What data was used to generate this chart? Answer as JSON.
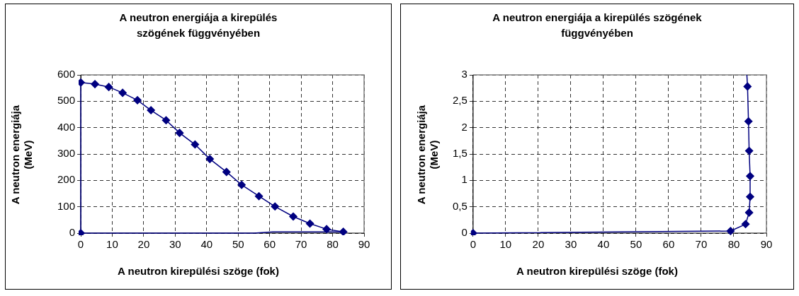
{
  "chart_data": [
    {
      "type": "scatter",
      "title": "A neutron energiája a kirepülés szögének függvényében",
      "xlabel": "A neutron kirepülési szöge (fok)",
      "ylabel": "A neutron energiája (MeV)",
      "xlim": [
        0,
        90
      ],
      "xticks": [
        0,
        10,
        20,
        30,
        40,
        50,
        60,
        70,
        80,
        90
      ],
      "ylim": [
        0,
        600
      ],
      "yticks": [
        0,
        100,
        200,
        300,
        400,
        500,
        600
      ],
      "grid": true,
      "legend": false,
      "line_style": "solid",
      "series": [
        {
          "type": "line",
          "color": "#000080",
          "marker": "diamond",
          "x": [
            0,
            0,
            4.5,
            8.9,
            13.3,
            18,
            22.3,
            27.1,
            31.4,
            36.3,
            41,
            46.3,
            51.1,
            56.6,
            61.7,
            67.5,
            72.8,
            78.1,
            83.4
          ],
          "values": [
            0,
            571,
            565,
            554,
            532,
            504,
            466,
            428,
            380,
            336,
            281,
            232,
            183,
            140,
            101,
            63,
            36,
            15,
            5
          ]
        },
        {
          "type": "line",
          "color": "#000080",
          "marker": "none",
          "x": [
            0,
            55,
            61,
            83.4
          ],
          "values": [
            0,
            0,
            5,
            5
          ]
        }
      ]
    },
    {
      "type": "scatter",
      "title": "A neutron energiája a kirepülés szögének függvényében",
      "xlabel": "A neutron kirepülési szöge (fok)",
      "ylabel": "A neutron energiája (MeV)",
      "xlim": [
        0,
        90
      ],
      "xticks": [
        0,
        10,
        20,
        30,
        40,
        50,
        60,
        70,
        80,
        90
      ],
      "ylim": [
        0,
        3
      ],
      "yticks": [
        0,
        {
          "value": 0.5,
          "label": "0,5"
        },
        1,
        {
          "value": 1.5,
          "label": "1,5"
        },
        2,
        {
          "value": 2.5,
          "label": "2,5"
        },
        3
      ],
      "grid": true,
      "legend": false,
      "line_style": "solid",
      "series": [
        {
          "type": "line",
          "color": "#000080",
          "marker": "diamond",
          "x": [
            0,
            79,
            83.6,
            84.7,
            85,
            85,
            84.7,
            84.5,
            84.2
          ],
          "values": [
            0,
            0.04,
            0.17,
            0.39,
            0.69,
            1.08,
            1.56,
            2.12,
            2.78
          ]
        },
        {
          "type": "line",
          "color": "#000080",
          "marker": "none",
          "x": [
            84.2,
            84
          ],
          "values": [
            2.78,
            3
          ]
        }
      ]
    }
  ]
}
